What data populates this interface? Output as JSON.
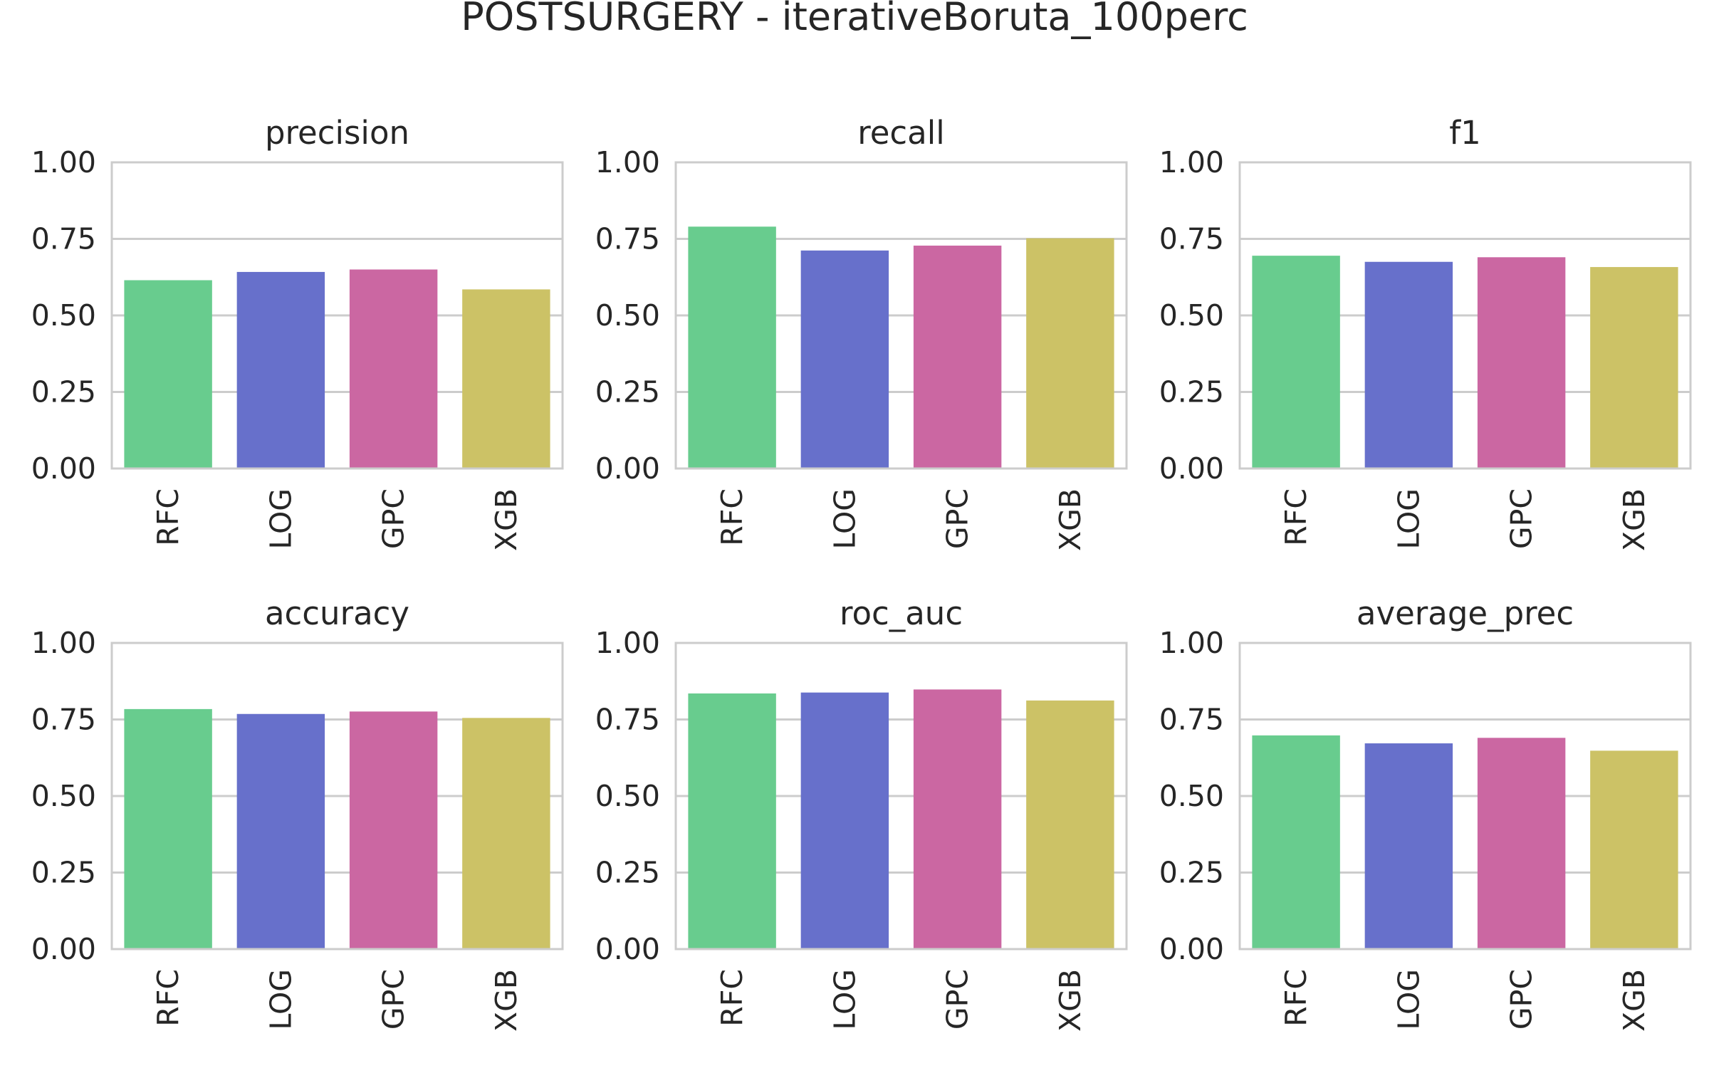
{
  "chart_data": {
    "type": "bar",
    "title": "POSTSURGERY - iterativeBoruta_100perc",
    "categories": [
      "RFC",
      "LOG",
      "GPC",
      "XGB"
    ],
    "colors": [
      "#68cc8e",
      "#6770cb",
      "#cb67a2",
      "#ccc266"
    ],
    "ylim": [
      0,
      1
    ],
    "yticks": [
      "0.00",
      "0.25",
      "0.50",
      "0.75",
      "1.00"
    ],
    "grid": true,
    "legend": "none",
    "panels": [
      {
        "title": "precision",
        "values": [
          0.615,
          0.642,
          0.65,
          0.585
        ]
      },
      {
        "title": "recall",
        "values": [
          0.79,
          0.712,
          0.728,
          0.752
        ]
      },
      {
        "title": "f1",
        "values": [
          0.695,
          0.675,
          0.69,
          0.658
        ]
      },
      {
        "title": "accuracy",
        "values": [
          0.784,
          0.768,
          0.776,
          0.755
        ]
      },
      {
        "title": "roc_auc",
        "values": [
          0.835,
          0.838,
          0.848,
          0.812
        ]
      },
      {
        "title": "average_prec",
        "values": [
          0.698,
          0.672,
          0.69,
          0.648
        ]
      }
    ]
  }
}
